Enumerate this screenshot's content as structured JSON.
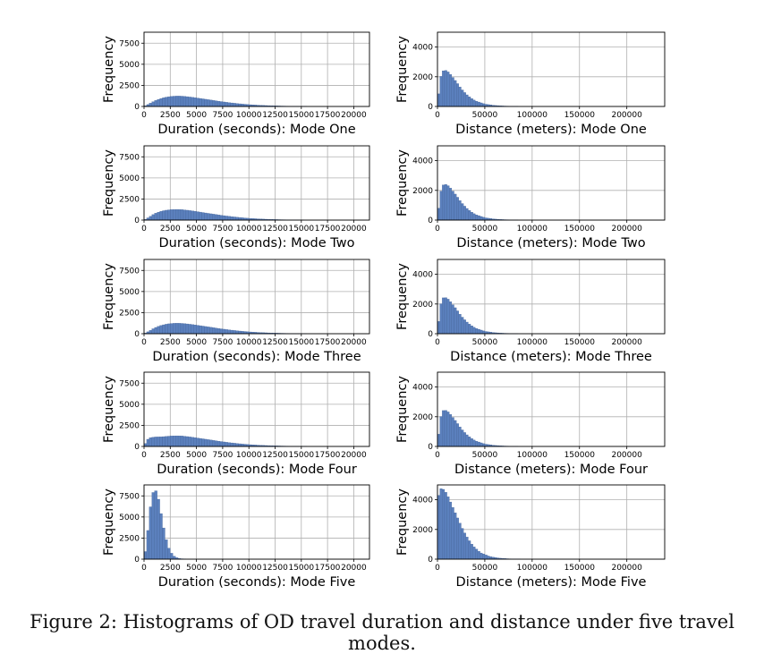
{
  "caption": "Figure 2: Histograms of OD travel duration and distance under five travel modes.",
  "colors": {
    "bar_fill": "#5b80bd",
    "bar_edge": "#3f5f95",
    "grid": "#b0b0b0",
    "axis": "#000000"
  },
  "chart_data": [
    {
      "type": "bar",
      "chart_kind": "histogram",
      "mode": "One",
      "metric": "duration",
      "xlabel": "Duration (seconds): Mode One",
      "ylabel": "Frequency",
      "xlim": [
        0,
        21500
      ],
      "ylim": [
        0,
        8800
      ],
      "xticks": [
        0,
        2500,
        5000,
        7500,
        10000,
        12500,
        15000,
        17500,
        20000
      ],
      "xtick_labels": [
        "0",
        "2500",
        "5000",
        "7500",
        "10000",
        "12500",
        "15000",
        "17500",
        "20000"
      ],
      "yticks": [
        0,
        2500,
        5000,
        7500
      ],
      "ytick_labels": [
        "0",
        "2500",
        "5000",
        "7500"
      ],
      "bin_width": 250,
      "curve": {
        "x": [
          0,
          500,
          1000,
          1500,
          2000,
          2500,
          3000,
          3500,
          4000,
          5000,
          6000,
          7000,
          8000,
          9000,
          10000,
          11000,
          12000,
          13000,
          14000,
          16000,
          18000,
          21500
        ],
        "y": [
          0,
          300,
          650,
          900,
          1080,
          1180,
          1230,
          1230,
          1180,
          1020,
          830,
          640,
          470,
          330,
          220,
          140,
          90,
          55,
          30,
          12,
          4,
          0
        ]
      }
    },
    {
      "type": "bar",
      "chart_kind": "histogram",
      "mode": "One",
      "metric": "distance",
      "xlabel": "Distance (meters): Mode One",
      "ylabel": "Frequency",
      "xlim": [
        0,
        240000
      ],
      "ylim": [
        0,
        5000
      ],
      "xticks": [
        0,
        50000,
        100000,
        150000,
        200000
      ],
      "xtick_labels": [
        "0",
        "50000",
        "100000",
        "150000",
        "200000"
      ],
      "yticks": [
        0,
        2000,
        4000
      ],
      "ytick_labels": [
        "0",
        "2000",
        "4000"
      ],
      "bin_width": 2500,
      "curve": {
        "x": [
          0,
          2500,
          5000,
          7500,
          10000,
          12500,
          15000,
          20000,
          25000,
          30000,
          35000,
          40000,
          50000,
          60000,
          70000,
          80000,
          90000,
          110000,
          240000
        ],
        "y": [
          0,
          1700,
          2350,
          2450,
          2400,
          2250,
          2050,
          1650,
          1200,
          850,
          580,
          380,
          160,
          70,
          30,
          14,
          6,
          0,
          0
        ]
      }
    },
    {
      "type": "bar",
      "chart_kind": "histogram",
      "mode": "Two",
      "metric": "duration",
      "xlabel": "Duration (seconds): Mode Two",
      "ylabel": "Frequency",
      "xlim": [
        0,
        21500
      ],
      "ylim": [
        0,
        8800
      ],
      "xticks": [
        0,
        2500,
        5000,
        7500,
        10000,
        12500,
        15000,
        17500,
        20000
      ],
      "xtick_labels": [
        "0",
        "2500",
        "5000",
        "7500",
        "10000",
        "12500",
        "15000",
        "17500",
        "20000"
      ],
      "yticks": [
        0,
        2500,
        5000,
        7500
      ],
      "ytick_labels": [
        "0",
        "2500",
        "5000",
        "7500"
      ],
      "bin_width": 250,
      "curve": {
        "x": [
          0,
          500,
          1000,
          1500,
          2000,
          2500,
          3000,
          3500,
          4000,
          5000,
          6000,
          7000,
          8000,
          9000,
          10000,
          11000,
          12000,
          13000,
          14000,
          16000,
          18000,
          21500
        ],
        "y": [
          0,
          350,
          750,
          1000,
          1150,
          1230,
          1260,
          1250,
          1190,
          1020,
          820,
          630,
          460,
          320,
          210,
          135,
          85,
          50,
          28,
          10,
          3,
          0
        ]
      }
    },
    {
      "type": "bar",
      "chart_kind": "histogram",
      "mode": "Two",
      "metric": "distance",
      "xlabel": "Distance (meters): Mode Two",
      "ylabel": "Frequency",
      "xlim": [
        0,
        240000
      ],
      "ylim": [
        0,
        5000
      ],
      "xticks": [
        0,
        50000,
        100000,
        150000,
        200000
      ],
      "xtick_labels": [
        "0",
        "50000",
        "100000",
        "150000",
        "200000"
      ],
      "yticks": [
        0,
        2000,
        4000
      ],
      "ytick_labels": [
        "0",
        "2000",
        "4000"
      ],
      "bin_width": 2500,
      "curve": {
        "x": [
          0,
          2500,
          5000,
          7500,
          10000,
          12500,
          15000,
          20000,
          25000,
          30000,
          35000,
          40000,
          50000,
          60000,
          70000,
          80000,
          90000,
          110000,
          240000
        ],
        "y": [
          0,
          1600,
          2300,
          2420,
          2380,
          2250,
          2050,
          1650,
          1200,
          850,
          580,
          380,
          160,
          70,
          30,
          14,
          6,
          0,
          0
        ]
      }
    },
    {
      "type": "bar",
      "chart_kind": "histogram",
      "mode": "Three",
      "metric": "duration",
      "xlabel": "Duration (seconds): Mode Three",
      "ylabel": "Frequency",
      "xlim": [
        0,
        21500
      ],
      "ylim": [
        0,
        8800
      ],
      "xticks": [
        0,
        2500,
        5000,
        7500,
        10000,
        12500,
        15000,
        17500,
        20000
      ],
      "xtick_labels": [
        "0",
        "2500",
        "5000",
        "7500",
        "10000",
        "12500",
        "15000",
        "17500",
        "20000"
      ],
      "yticks": [
        0,
        2500,
        5000,
        7500
      ],
      "ytick_labels": [
        "0",
        "2500",
        "5000",
        "7500"
      ],
      "bin_width": 250,
      "curve": {
        "x": [
          0,
          500,
          1000,
          1500,
          2000,
          2500,
          3000,
          3500,
          4000,
          5000,
          6000,
          7000,
          8000,
          9000,
          10000,
          11000,
          12000,
          13000,
          14000,
          16000,
          18000,
          21500
        ],
        "y": [
          0,
          300,
          680,
          930,
          1100,
          1200,
          1240,
          1230,
          1180,
          1020,
          830,
          640,
          470,
          330,
          220,
          140,
          90,
          55,
          30,
          12,
          4,
          0
        ]
      }
    },
    {
      "type": "bar",
      "chart_kind": "histogram",
      "mode": "Three",
      "metric": "distance",
      "xlabel": "Distance (meters): Mode Three",
      "ylabel": "Frequency",
      "xlim": [
        0,
        240000
      ],
      "ylim": [
        0,
        5000
      ],
      "xticks": [
        0,
        50000,
        100000,
        150000,
        200000
      ],
      "xtick_labels": [
        "0",
        "50000",
        "100000",
        "150000",
        "200000"
      ],
      "yticks": [
        0,
        2000,
        4000
      ],
      "ytick_labels": [
        "0",
        "2000",
        "4000"
      ],
      "bin_width": 2500,
      "curve": {
        "x": [
          0,
          2500,
          5000,
          7500,
          10000,
          12500,
          15000,
          20000,
          25000,
          30000,
          35000,
          40000,
          50000,
          60000,
          70000,
          80000,
          90000,
          110000,
          240000
        ],
        "y": [
          0,
          1650,
          2380,
          2450,
          2400,
          2250,
          2050,
          1650,
          1200,
          850,
          580,
          380,
          160,
          70,
          30,
          14,
          6,
          0,
          0
        ]
      }
    },
    {
      "type": "bar",
      "chart_kind": "histogram",
      "mode": "Four",
      "metric": "duration",
      "xlabel": "Duration (seconds): Mode Four",
      "ylabel": "Frequency",
      "xlim": [
        0,
        21500
      ],
      "ylim": [
        0,
        8800
      ],
      "xticks": [
        0,
        2500,
        5000,
        7500,
        10000,
        12500,
        15000,
        17500,
        20000
      ],
      "xtick_labels": [
        "0",
        "2500",
        "5000",
        "7500",
        "10000",
        "12500",
        "15000",
        "17500",
        "20000"
      ],
      "yticks": [
        0,
        2500,
        5000,
        7500
      ],
      "ytick_labels": [
        "0",
        "2500",
        "5000",
        "7500"
      ],
      "bin_width": 250,
      "curve": {
        "x": [
          0,
          250,
          500,
          1000,
          1500,
          2000,
          2500,
          3000,
          3500,
          4000,
          5000,
          6000,
          7000,
          8000,
          9000,
          10000,
          11000,
          12000,
          13000,
          14000,
          16000,
          18000,
          21500
        ],
        "y": [
          0,
          700,
          1000,
          1120,
          1130,
          1170,
          1230,
          1260,
          1250,
          1190,
          1020,
          830,
          640,
          470,
          330,
          220,
          140,
          90,
          55,
          30,
          12,
          4,
          0
        ]
      }
    },
    {
      "type": "bar",
      "chart_kind": "histogram",
      "mode": "Four",
      "metric": "distance",
      "xlabel": "Distance (meters): Mode Four",
      "ylabel": "Frequency",
      "xlim": [
        0,
        240000
      ],
      "ylim": [
        0,
        5000
      ],
      "xticks": [
        0,
        50000,
        100000,
        150000,
        200000
      ],
      "xtick_labels": [
        "0",
        "50000",
        "100000",
        "150000",
        "200000"
      ],
      "yticks": [
        0,
        2000,
        4000
      ],
      "ytick_labels": [
        "0",
        "2000",
        "4000"
      ],
      "bin_width": 2500,
      "curve": {
        "x": [
          0,
          2500,
          5000,
          7500,
          10000,
          12500,
          15000,
          20000,
          25000,
          30000,
          35000,
          40000,
          50000,
          60000,
          70000,
          80000,
          90000,
          110000,
          240000
        ],
        "y": [
          0,
          1650,
          2380,
          2450,
          2400,
          2250,
          2050,
          1650,
          1200,
          850,
          580,
          380,
          160,
          70,
          30,
          14,
          6,
          0,
          0
        ]
      }
    },
    {
      "type": "bar",
      "chart_kind": "histogram",
      "mode": "Five",
      "metric": "duration",
      "xlabel": "Duration (seconds): Mode Five",
      "ylabel": "Frequency",
      "xlim": [
        0,
        21500
      ],
      "ylim": [
        0,
        8800
      ],
      "xticks": [
        0,
        2500,
        5000,
        7500,
        10000,
        12500,
        15000,
        17500,
        20000
      ],
      "xtick_labels": [
        "0",
        "2500",
        "5000",
        "7500",
        "10000",
        "12500",
        "15000",
        "17500",
        "20000"
      ],
      "yticks": [
        0,
        2500,
        5000,
        7500
      ],
      "ytick_labels": [
        "0",
        "2500",
        "5000",
        "7500"
      ],
      "bin_width": 250,
      "curve": {
        "x": [
          0,
          125,
          375,
          625,
          875,
          1125,
          1375,
          1625,
          1875,
          2125,
          2375,
          2625,
          2875,
          3125,
          3375,
          3750,
          4500,
          21500
        ],
        "y": [
          0,
          900,
          3400,
          6200,
          7900,
          8100,
          7100,
          5400,
          3700,
          2300,
          1300,
          700,
          350,
          170,
          80,
          30,
          0,
          0
        ]
      }
    },
    {
      "type": "bar",
      "chart_kind": "histogram",
      "mode": "Five",
      "metric": "distance",
      "xlabel": "Distance (meters): Mode Five",
      "ylabel": "Frequency",
      "xlim": [
        0,
        240000
      ],
      "ylim": [
        0,
        5000
      ],
      "xticks": [
        0,
        50000,
        100000,
        150000,
        200000
      ],
      "xtick_labels": [
        "0",
        "50000",
        "100000",
        "150000",
        "200000"
      ],
      "yticks": [
        0,
        2000,
        4000
      ],
      "ytick_labels": [
        "0",
        "2000",
        "4000"
      ],
      "bin_width": 2500,
      "curve": {
        "x": [
          0,
          1250,
          3750,
          6250,
          8750,
          11250,
          13750,
          17500,
          22500,
          27500,
          32500,
          37500,
          45000,
          55000,
          65000,
          75000,
          90000,
          110000,
          240000
        ],
        "y": [
          0,
          4300,
          4750,
          4700,
          4500,
          4200,
          3850,
          3300,
          2600,
          1900,
          1350,
          900,
          450,
          180,
          70,
          25,
          6,
          0,
          0
        ]
      }
    }
  ]
}
